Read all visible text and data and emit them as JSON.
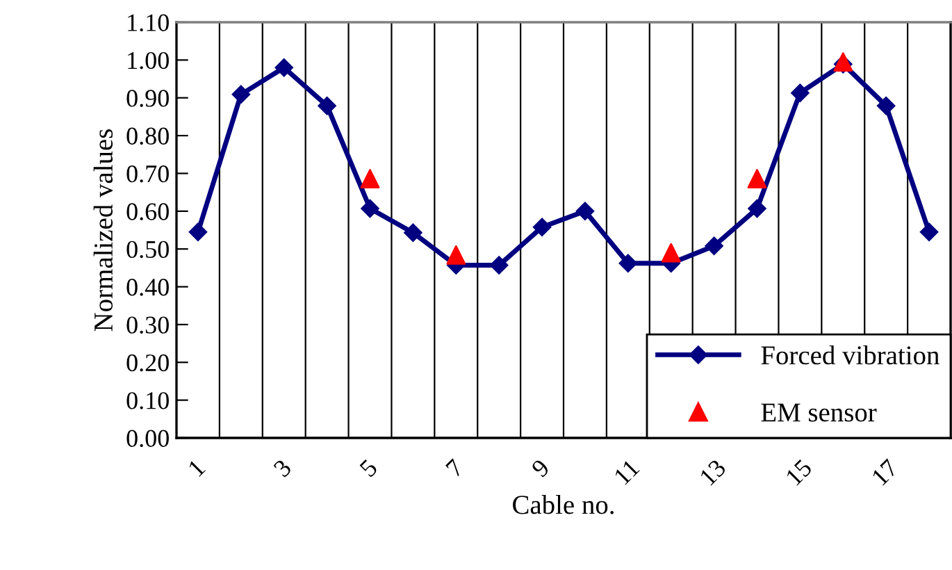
{
  "chart_data": {
    "type": "line",
    "xlabel": "Cable no.",
    "ylabel": "Normalized values",
    "categories": [
      "1",
      null,
      "3",
      null,
      "5",
      null,
      "7",
      null,
      "9",
      null,
      "11",
      null,
      "13",
      null,
      "15",
      null,
      "17",
      null
    ],
    "series": [
      {
        "name": "Forced vibration",
        "color": "#000080",
        "marker": "diamond",
        "line_style": "solid",
        "values": [
          0.545,
          0.909,
          0.98,
          0.879,
          0.607,
          0.543,
          0.457,
          0.457,
          0.558,
          0.6,
          0.462,
          0.462,
          0.508,
          0.607,
          0.913,
          0.989,
          0.879,
          0.545
        ]
      },
      {
        "name": "EM sensor",
        "type": "scatter",
        "color": "#ff0000",
        "marker": "triangle",
        "values": [
          null,
          null,
          null,
          null,
          0.686,
          null,
          0.484,
          null,
          null,
          null,
          null,
          0.49,
          null,
          0.686,
          null,
          0.995,
          null,
          null
        ]
      }
    ],
    "ylim": [
      0,
      1.1
    ],
    "yticks": [
      {
        "value": 0,
        "label": "0.00"
      },
      {
        "value": 0.1,
        "label": "0.10"
      },
      {
        "value": 0.2,
        "label": "0.20"
      },
      {
        "value": 0.3,
        "label": "0.30"
      },
      {
        "value": 0.4,
        "label": "0.40"
      },
      {
        "value": 0.5,
        "label": "0.50"
      },
      {
        "value": 0.6,
        "label": "0.60"
      },
      {
        "value": 0.7,
        "label": "0.70"
      },
      {
        "value": 0.8,
        "label": "0.80"
      },
      {
        "value": 0.9,
        "label": "0.90"
      },
      {
        "value": 1.0,
        "label": "1.00"
      },
      {
        "value": 1.1,
        "label": "1.10"
      }
    ],
    "grid": "x",
    "legend": "bottom right"
  }
}
